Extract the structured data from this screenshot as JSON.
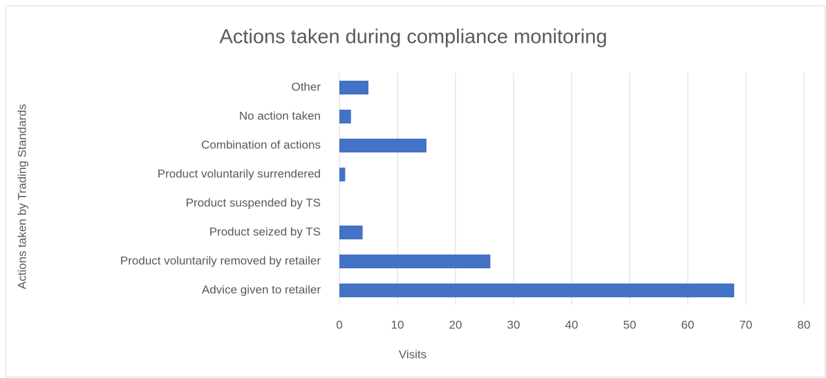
{
  "chart_data": {
    "type": "hbar",
    "title": "Actions taken during compliance monitoring",
    "x_label": "Visits",
    "y_label": "Actions taken by Trading Standards",
    "categories": [
      "Other",
      "No action taken",
      "Combination of actions",
      "Product voluntarily surrendered",
      "Product suspended by TS",
      "Product seized by TS",
      "Product voluntarily removed by retailer",
      "Advice given to retailer"
    ],
    "values": [
      5,
      2,
      15,
      1,
      0,
      4,
      26,
      68
    ],
    "color": "#4472c4",
    "xlim": [
      0,
      80
    ],
    "xticks": [
      0,
      10,
      20,
      30,
      40,
      50,
      60,
      70,
      80
    ],
    "grid": true
  }
}
